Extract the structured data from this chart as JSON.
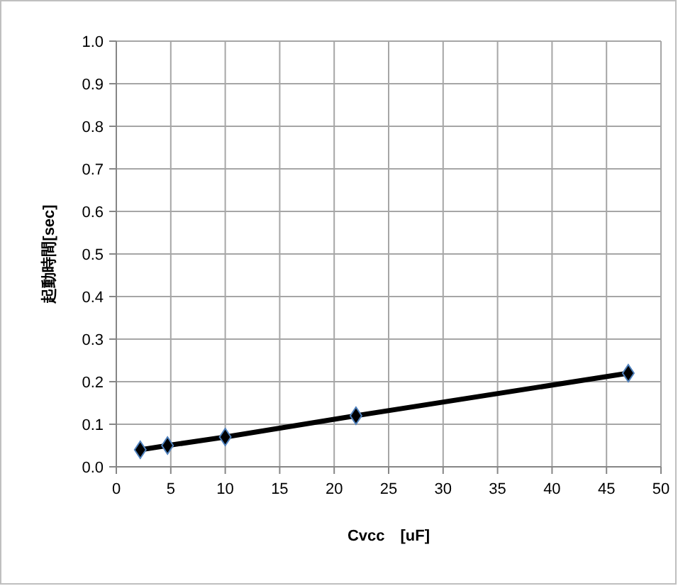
{
  "chart_data": {
    "type": "line",
    "xlabel": "Cvcc　[uF]",
    "ylabel": "起動時間[sec]",
    "x": [
      2.2,
      4.7,
      10,
      22,
      47
    ],
    "series": [
      {
        "color": "#000000",
        "values": [
          0.04,
          0.05,
          0.07,
          0.12,
          0.22
        ]
      }
    ],
    "xlim": [
      0,
      50
    ],
    "xticks": [
      0,
      5,
      10,
      15,
      20,
      25,
      30,
      35,
      40,
      45,
      50
    ],
    "ylim": [
      0,
      1
    ],
    "yticks": [
      {
        "value": 0,
        "label": "0.0"
      },
      {
        "value": 0.1,
        "label": "0.1"
      },
      {
        "value": 0.2,
        "label": "0.2"
      },
      {
        "value": 0.3,
        "label": "0.3"
      },
      {
        "value": 0.4,
        "label": "0.4"
      },
      {
        "value": 0.5,
        "label": "0.5"
      },
      {
        "value": 0.6,
        "label": "0.6"
      },
      {
        "value": 0.7,
        "label": "0.7"
      },
      {
        "value": 0.8,
        "label": "0.8"
      },
      {
        "value": 0.9,
        "label": "0.9"
      },
      {
        "value": 1,
        "label": "1.0"
      }
    ],
    "grid": true,
    "marker": "diamond",
    "line_style": "solid"
  }
}
